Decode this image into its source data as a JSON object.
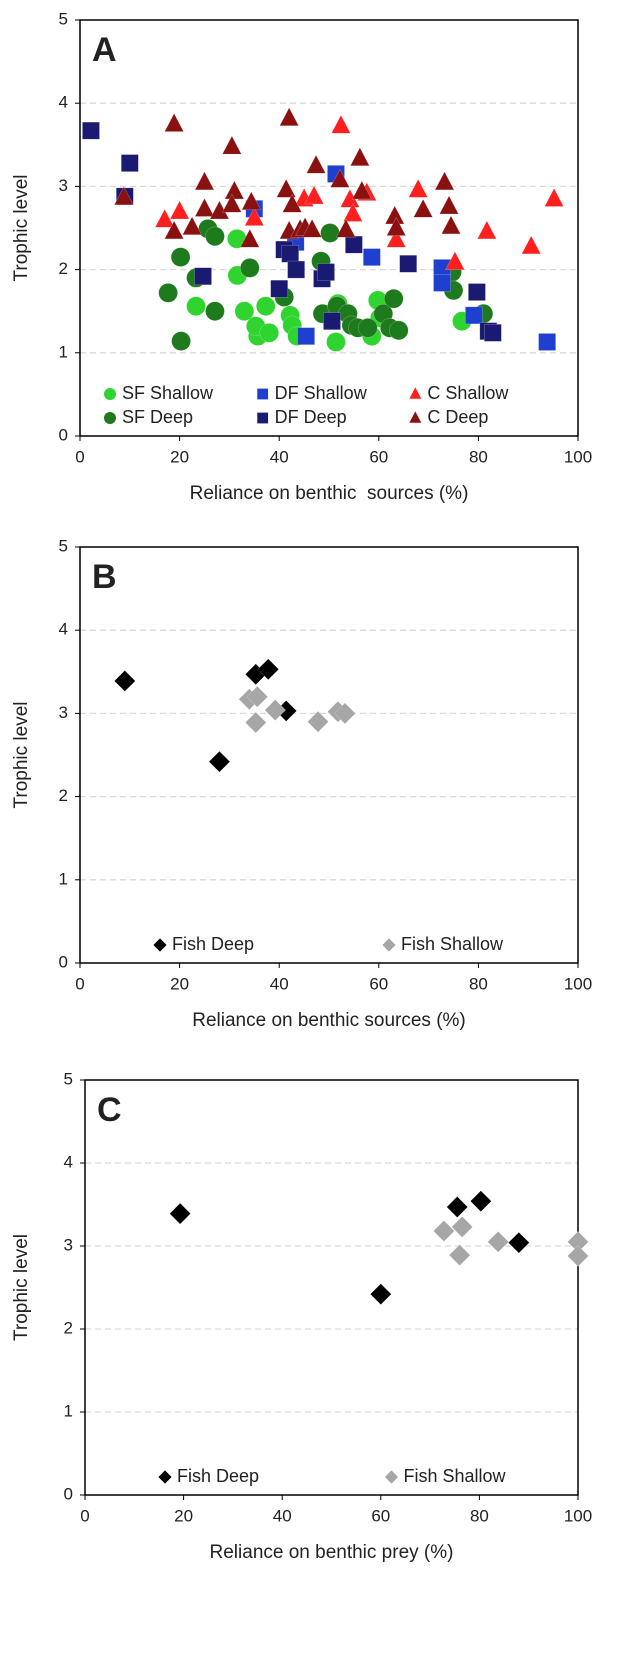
{
  "chart_data": [
    {
      "type": "scatter",
      "label": "A",
      "xlabel": "Reliance on benthic  sources (%)",
      "ylabel": "Trophic level",
      "xlim": [
        0,
        100
      ],
      "xticks": [
        0,
        20,
        40,
        60,
        80,
        100
      ],
      "ylim": [
        0,
        5
      ],
      "yticks": [
        0,
        1,
        2,
        3,
        4,
        5
      ],
      "grid": true,
      "legend": "lower center",
      "legend_columns": 3,
      "series": [
        {
          "name": "SF Shallow",
          "marker": "circle",
          "color": "#2fd42f",
          "x": [
            31.5,
            31.6,
            23.3,
            33,
            35.7,
            35.3,
            37.3,
            38,
            42.2,
            42.6,
            43.6,
            51.4,
            51.8,
            58.6,
            59.8,
            60.2,
            76.7
          ],
          "values": [
            2.37,
            1.93,
            1.56,
            1.5,
            1.2,
            1.32,
            1.56,
            1.24,
            1.45,
            1.33,
            1.2,
            1.13,
            1.59,
            1.2,
            1.63,
            1.42,
            1.38
          ]
        },
        {
          "name": "SF Deep",
          "marker": "circle",
          "color": "#1d7a1d",
          "x": [
            17.7,
            20.2,
            20.3,
            23.3,
            25.7,
            27.1,
            27.1,
            34.1,
            41,
            48.4,
            50.2,
            48.7,
            51.6,
            53.8,
            54.5,
            55.8,
            57.8,
            60.9,
            62.2,
            63,
            64,
            74.7,
            75,
            81
          ],
          "values": [
            1.72,
            2.15,
            1.14,
            1.9,
            2.49,
            2.4,
            1.5,
            2.02,
            1.67,
            2.1,
            2.44,
            1.47,
            1.56,
            1.47,
            1.33,
            1.3,
            1.3,
            1.47,
            1.3,
            1.65,
            1.27,
            1.97,
            1.75,
            1.47
          ]
        },
        {
          "name": "DF Shallow",
          "marker": "square",
          "color": "#1f3fcf",
          "x": [
            35,
            43.3,
            45.4,
            51.4,
            58.6,
            72.7,
            72.7,
            79.1,
            93.8
          ],
          "values": [
            2.73,
            2.33,
            1.2,
            3.15,
            2.15,
            2.02,
            1.84,
            1.45,
            1.13
          ]
        },
        {
          "name": "DF Deep",
          "marker": "square",
          "color": "#1a1a72",
          "x": [
            2.2,
            9,
            10,
            24.7,
            40,
            41,
            42.2,
            43.4,
            48.6,
            49.4,
            50.6,
            55,
            65.9,
            79.7,
            82,
            82.9
          ],
          "values": [
            3.67,
            2.88,
            3.28,
            1.92,
            1.77,
            2.24,
            2.19,
            2,
            1.89,
            1.97,
            1.38,
            2.3,
            2.07,
            1.73,
            1.26,
            1.24
          ]
        },
        {
          "name": "C Shallow",
          "marker": "triangle",
          "color": "#ff1f1f",
          "x": [
            17,
            20,
            35,
            45,
            47,
            52.4,
            54.2,
            54.8,
            57.6,
            63.5,
            67.9,
            75.3,
            81.7,
            90.6,
            95.2
          ],
          "values": [
            2.6,
            2.7,
            2.62,
            2.85,
            2.88,
            3.73,
            2.84,
            2.67,
            2.92,
            2.36,
            2.96,
            2.09,
            2.46,
            2.28,
            2.85
          ]
        },
        {
          "name": "C Deep",
          "marker": "triangle",
          "color": "#8b1111",
          "x": [
            8.8,
            18.9,
            42,
            18.9,
            22.5,
            25,
            25,
            28,
            30.5,
            31,
            30.5,
            34.1,
            34.4,
            41.4,
            42,
            42.6,
            44.2,
            45.2,
            46.6,
            47.4,
            52.2,
            53.4,
            56.2,
            56.6,
            63.2,
            63.5,
            68.9,
            73.2,
            74.1,
            74.5
          ],
          "values": [
            2.87,
            3.75,
            3.82,
            2.46,
            2.51,
            3.05,
            2.73,
            2.7,
            3.48,
            2.94,
            2.78,
            2.36,
            2.81,
            2.96,
            2.46,
            2.78,
            2.48,
            2.5,
            2.48,
            3.25,
            3.08,
            2.48,
            3.34,
            2.94,
            2.64,
            2.5,
            2.72,
            3.05,
            2.76,
            2.52
          ]
        }
      ]
    },
    {
      "type": "scatter",
      "label": "B",
      "xlabel": "Reliance on benthic sources (%)",
      "ylabel": "Trophic level",
      "xlim": [
        0,
        100
      ],
      "xticks": [
        0,
        20,
        40,
        60,
        80,
        100
      ],
      "ylim": [
        0,
        5
      ],
      "yticks": [
        0,
        1,
        2,
        3,
        4,
        5
      ],
      "grid": true,
      "legend": "lower center",
      "legend_columns": 2,
      "series": [
        {
          "name": "Fish Deep",
          "marker": "diamond",
          "color": "#000000",
          "x": [
            9,
            28,
            35.3,
            37.8,
            41.4
          ],
          "values": [
            3.39,
            2.42,
            3.47,
            3.53,
            3.03
          ]
        },
        {
          "name": "Fish Shallow",
          "marker": "diamond",
          "color": "#a6a6a6",
          "x": [
            34,
            35.6,
            35.3,
            39.2,
            47.8,
            51.8,
            53.2
          ],
          "values": [
            3.17,
            3.2,
            2.89,
            3.04,
            2.9,
            3.02,
            3
          ]
        }
      ]
    },
    {
      "type": "scatter",
      "label": "C",
      "xlabel": "Reliance on benthic prey (%)",
      "ylabel": "Trophic level",
      "xlim": [
        0,
        100
      ],
      "xticks": [
        0,
        20,
        40,
        60,
        80,
        100
      ],
      "ylim": [
        0,
        5
      ],
      "yticks": [
        0,
        1,
        2,
        3,
        4,
        5
      ],
      "grid": true,
      "legend": "lower center",
      "legend_columns": 2,
      "series": [
        {
          "name": "Fish Deep",
          "marker": "diamond",
          "color": "#000000",
          "x": [
            19.3,
            60,
            75.5,
            80.3,
            88
          ],
          "values": [
            3.39,
            2.42,
            3.47,
            3.54,
            3.04
          ]
        },
        {
          "name": "Fish Shallow",
          "marker": "diamond",
          "color": "#a6a6a6",
          "x": [
            72.8,
            76.5,
            76,
            83.8,
            100,
            100
          ],
          "values": [
            3.18,
            3.23,
            2.89,
            3.05,
            3.05,
            2.88
          ]
        }
      ]
    }
  ]
}
